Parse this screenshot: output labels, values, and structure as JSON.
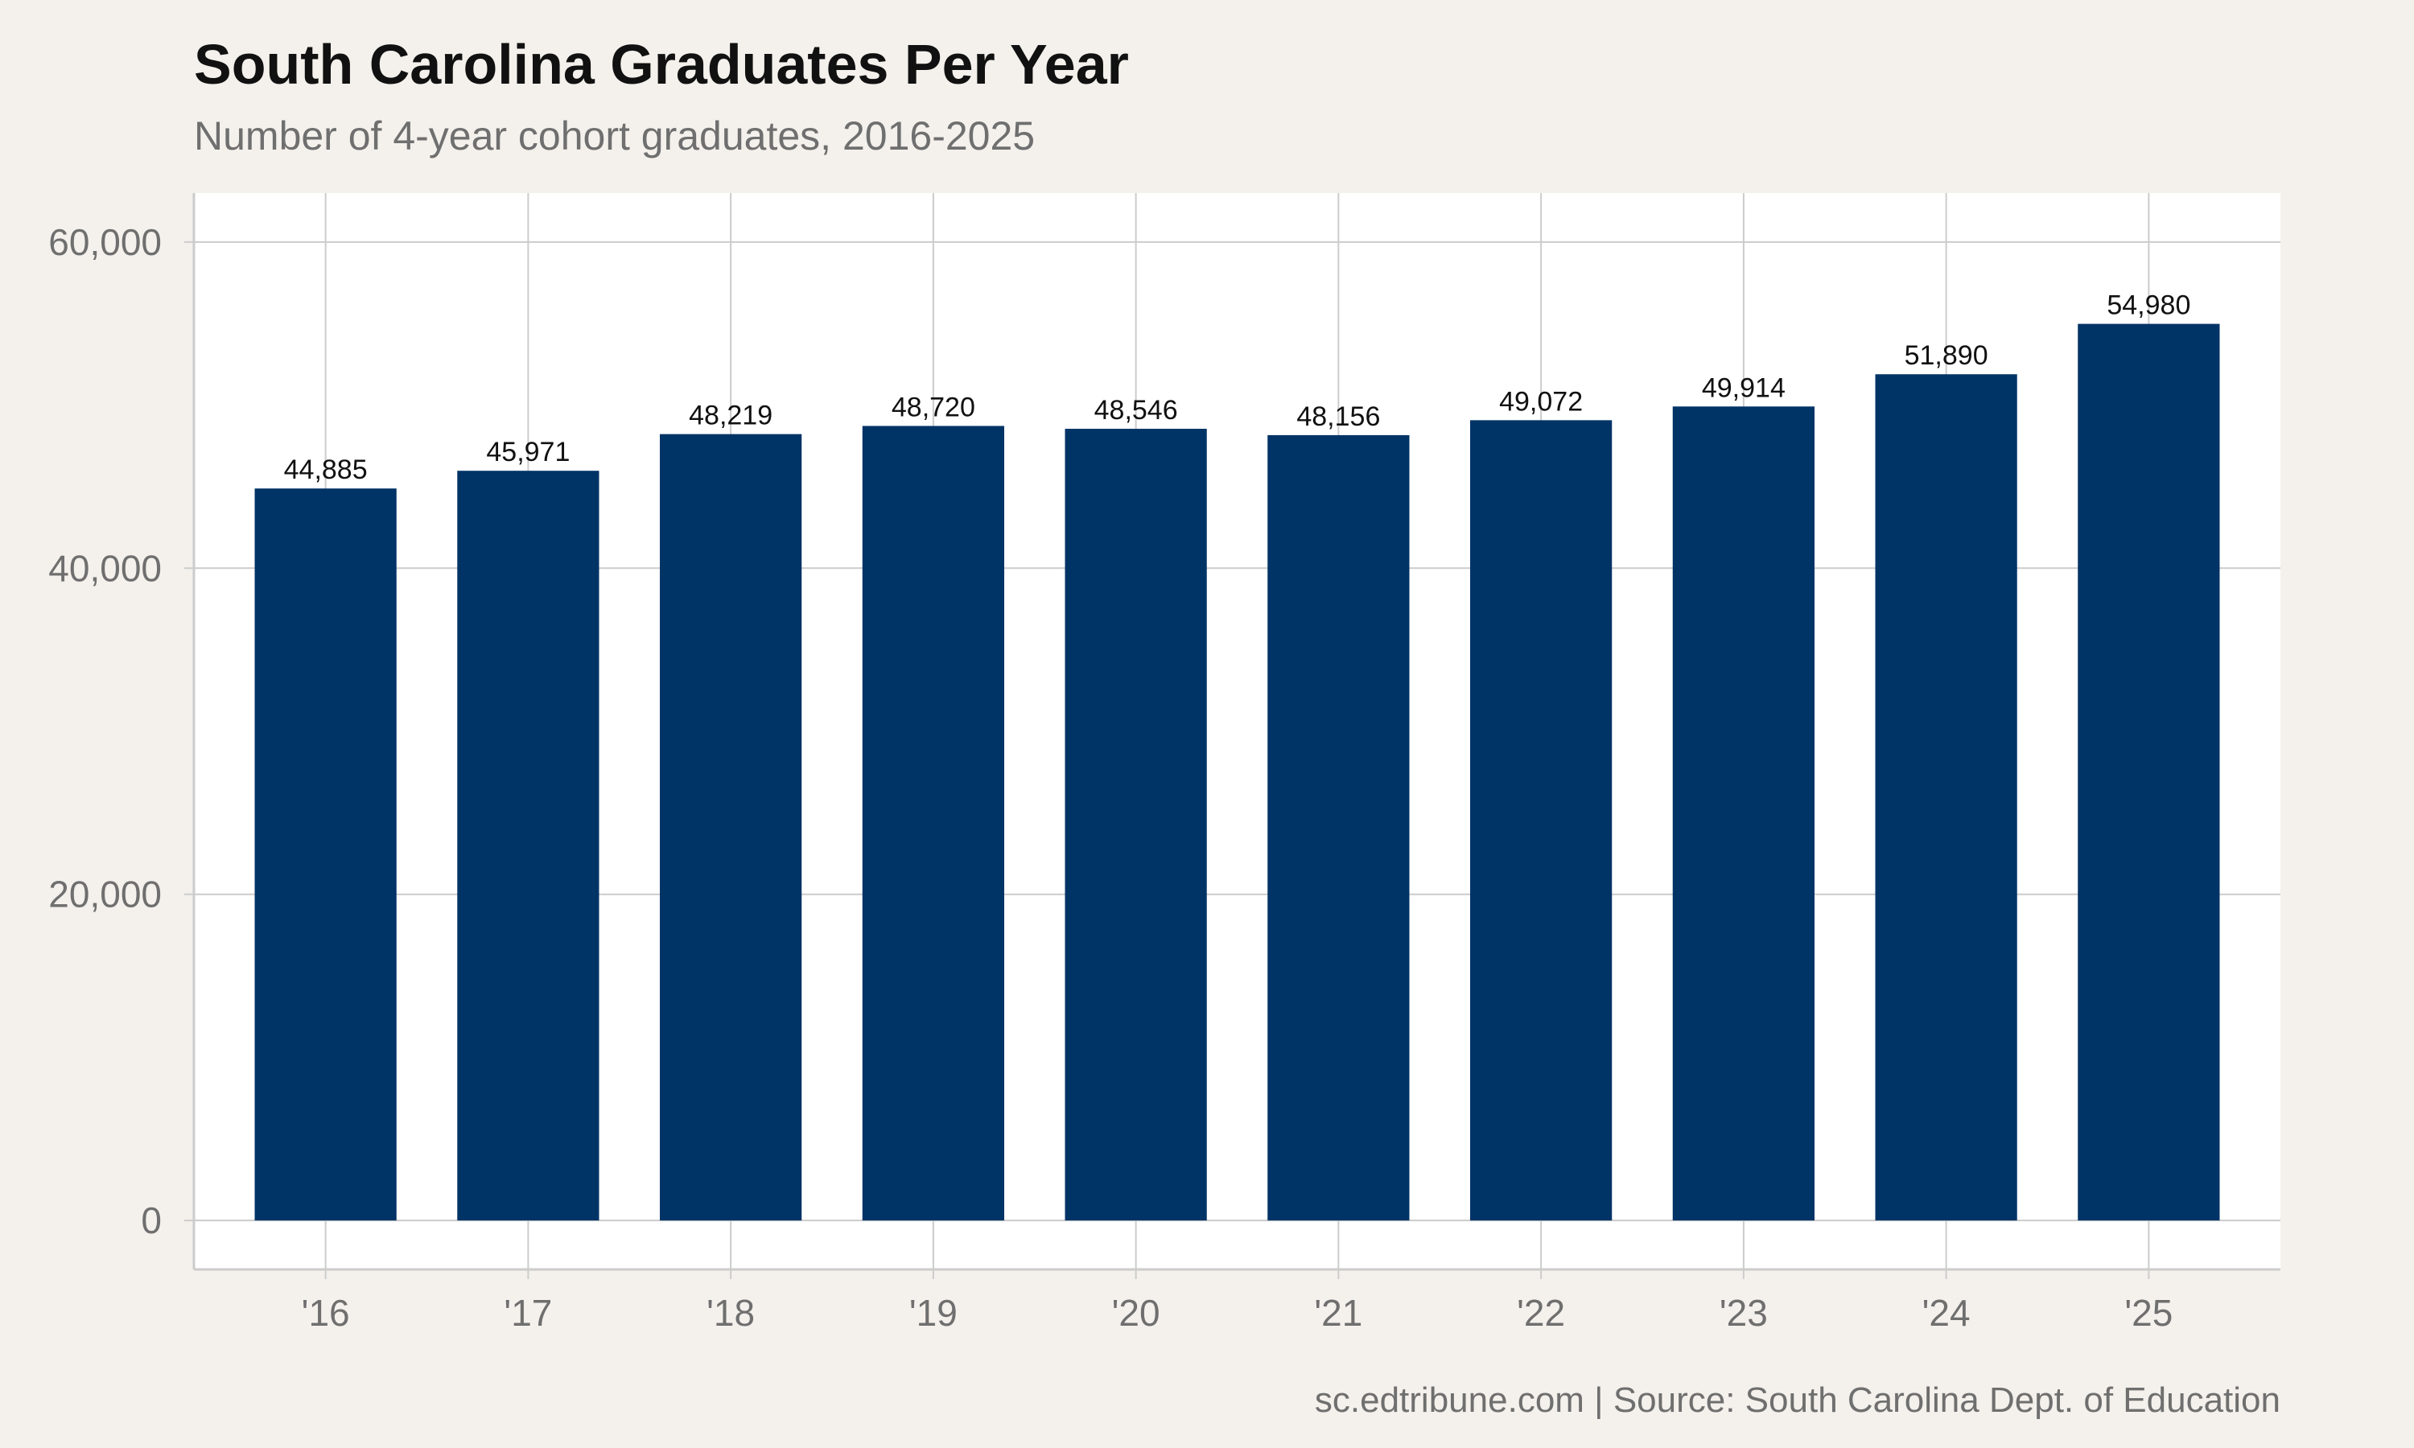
{
  "title": "South Carolina Graduates Per Year",
  "subtitle": "Number of 4-year cohort graduates, 2016-2025",
  "caption": "sc.edtribune.com | Source: South Carolina Dept. of Education",
  "colors": {
    "bar": "#003366",
    "background": "#f4f1ec",
    "panel": "#ffffff",
    "grid": "#cccccc",
    "axis_text": "#6f6f6f",
    "label_text": "#111111"
  },
  "chart_data": {
    "type": "bar",
    "categories": [
      "'16",
      "'17",
      "'18",
      "'19",
      "'20",
      "'21",
      "'22",
      "'23",
      "'24",
      "'25"
    ],
    "values": [
      44885,
      45971,
      48219,
      48720,
      48546,
      48156,
      49072,
      49914,
      51890,
      54980
    ],
    "value_labels": [
      "44,885",
      "45,971",
      "48,219",
      "48,720",
      "48,546",
      "48,156",
      "49,072",
      "49,914",
      "51,890",
      "54,980"
    ],
    "title": "South Carolina Graduates Per Year",
    "subtitle": "Number of 4-year cohort graduates, 2016-2025",
    "xlabel": "",
    "ylabel": "",
    "ylim": [
      -3000,
      63000
    ],
    "yticks": [
      0,
      20000,
      40000,
      60000
    ],
    "ytick_labels": [
      "0",
      "20,000",
      "40,000",
      "60,000"
    ],
    "grid": true,
    "legend": "none"
  }
}
